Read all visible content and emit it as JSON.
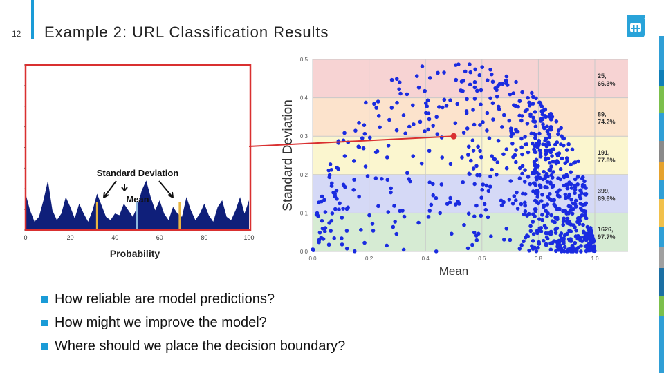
{
  "slide": {
    "number": "12",
    "title": "Example 2: URL Classification Results"
  },
  "colors": {
    "accent": "#1a9bd7",
    "scatter_points": "#1a2be0",
    "histogram_fill": "#0f1f7a",
    "highlight_red": "#d93030"
  },
  "bullets": [
    "How reliable are model predictions?",
    "How might we improve the model?",
    "Where should we place the decision boundary?"
  ],
  "chart_data": [
    {
      "type": "area",
      "xlabel": "Probability",
      "xlim": [
        0,
        100
      ],
      "x_ticks": [
        "0",
        "20",
        "40",
        "60",
        "80",
        "100"
      ],
      "annotations": [
        "Standard Deviation",
        "Mean"
      ],
      "x": [
        0,
        2,
        4,
        6,
        8,
        10,
        12,
        14,
        16,
        18,
        20,
        22,
        24,
        26,
        28,
        30,
        32,
        34,
        36,
        38,
        40,
        42,
        44,
        46,
        48,
        50,
        52,
        54,
        56,
        58,
        60,
        62,
        64,
        66,
        68,
        70,
        72,
        74,
        76,
        78,
        80,
        82,
        84,
        86,
        88,
        90,
        92,
        94,
        96,
        98,
        100
      ],
      "values": [
        0.22,
        0.12,
        0.05,
        0.08,
        0.18,
        0.3,
        0.12,
        0.06,
        0.1,
        0.2,
        0.14,
        0.07,
        0.16,
        0.1,
        0.05,
        0.12,
        0.22,
        0.15,
        0.08,
        0.06,
        0.1,
        0.09,
        0.16,
        0.12,
        0.08,
        0.14,
        0.24,
        0.3,
        0.2,
        0.12,
        0.18,
        0.1,
        0.06,
        0.14,
        0.1,
        0.08,
        0.2,
        0.12,
        0.06,
        0.1,
        0.16,
        0.09,
        0.05,
        0.14,
        0.18,
        0.08,
        0.06,
        0.12,
        0.2,
        0.1,
        0.18
      ],
      "mean_line": 50,
      "std_lines": [
        32,
        69
      ],
      "highlighted": true
    },
    {
      "type": "scatter",
      "xlabel": "Mean",
      "ylabel": "Standard Deviation",
      "xlim": [
        0,
        1
      ],
      "ylim": [
        0,
        0.5
      ],
      "x_ticks": [
        "0.0",
        "0.2",
        "0.4",
        "0.6",
        "0.8",
        "1.0"
      ],
      "y_ticks": [
        "0.0",
        "0.1",
        "0.2",
        "0.3",
        "0.4",
        "0.5"
      ],
      "grid": true,
      "bands": [
        {
          "y0": 0.4,
          "y1": 0.5,
          "color": "#f7d3d3",
          "label_count": "25,",
          "label_pct": "66.3%"
        },
        {
          "y0": 0.3,
          "y1": 0.4,
          "color": "#fce3cc",
          "label_count": "89,",
          "label_pct": "74.2%"
        },
        {
          "y0": 0.2,
          "y1": 0.3,
          "color": "#fbf6cf",
          "label_count": "191,",
          "label_pct": "77.8%"
        },
        {
          "y0": 0.1,
          "y1": 0.2,
          "color": "#d5d9f6",
          "label_count": "399,",
          "label_pct": "89.6%"
        },
        {
          "y0": 0.0,
          "y1": 0.1,
          "color": "#d6ebd3",
          "label_count": "1626,",
          "label_pct": "97.7%"
        }
      ],
      "highlight_point": [
        0.5,
        0.3
      ]
    }
  ]
}
